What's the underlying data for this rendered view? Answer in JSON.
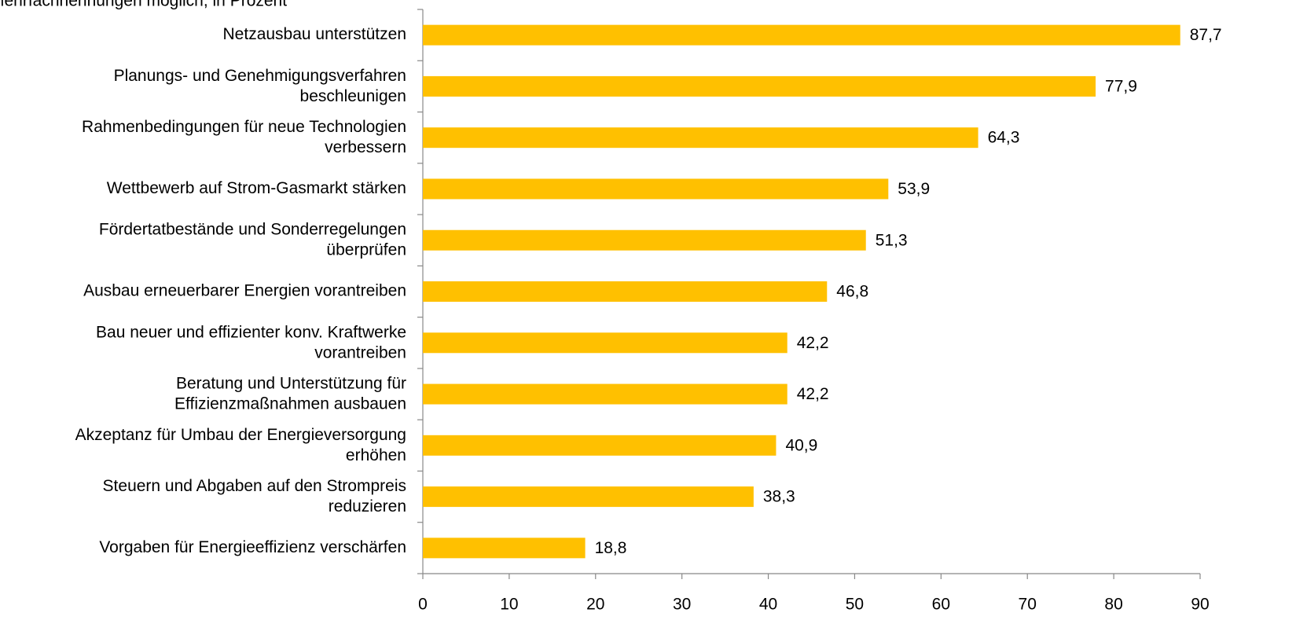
{
  "chart_data": {
    "type": "barh",
    "subtitle": "Mehrfachnennungen möglich, in Prozent",
    "categories": [
      "Netzausbau unterstützen",
      "Planungs- und Genehmigungsverfahren\nbeschleunigen",
      "Rahmenbedingungen für neue Technologien\nverbessern",
      "Wettbewerb auf Strom-Gasmarkt stärken",
      "Fördertatbestände und Sonderregelungen\nüberprüfen",
      "Ausbau erneuerbarer Energien vorantreiben",
      "Bau neuer und effizienter konv. Kraftwerke\nvorantreiben",
      "Beratung und Unterstützung für\nEffizienzmaßnahmen ausbauen",
      "Akzeptanz für Umbau der Energieversorgung\nerhöhen",
      "Steuern und Abgaben auf den Strompreis\nreduzieren",
      "Vorgaben für Energieeffizienz verschärfen"
    ],
    "values": [
      87.7,
      77.9,
      64.3,
      53.9,
      51.3,
      46.8,
      42.2,
      42.2,
      40.9,
      38.3,
      18.8
    ],
    "value_labels": [
      "87,7",
      "77,9",
      "64,3",
      "53,9",
      "51,3",
      "46,8",
      "42,2",
      "42,2",
      "40,9",
      "38,3",
      "18,8"
    ],
    "color": "#ffc000",
    "xlim": [
      0,
      90
    ],
    "xticks": [
      0,
      10,
      20,
      30,
      40,
      50,
      60,
      70,
      80,
      90
    ]
  }
}
